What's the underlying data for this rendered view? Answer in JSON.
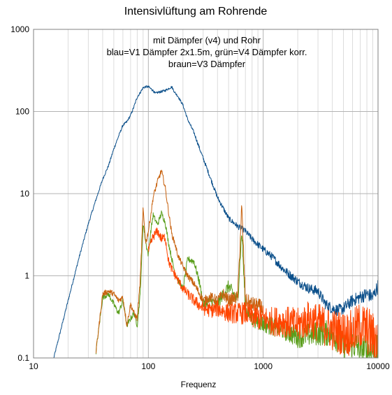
{
  "chart_data": {
    "type": "line",
    "title": "Intensivlüftung am Rohrende",
    "annotation": [
      "mit Dämpfer (v4) und Rohr",
      "blau=V1 Dämpfer 2x1.5m, grün=V4 Dämpfer korr.",
      "braun=V3 Dämpfer"
    ],
    "xlabel": "Frequenz",
    "ylabel": "",
    "x_scale": "log",
    "y_scale": "log",
    "xlim": [
      10,
      10000
    ],
    "ylim": [
      0.1,
      1000
    ],
    "x_ticks": [
      "10",
      "100",
      "1000",
      "10000"
    ],
    "y_ticks": [
      "0.1",
      "1",
      "10",
      "100",
      "1000"
    ],
    "grid": true,
    "legend": "none",
    "colors": {
      "blue": "#0b4f8a",
      "green": "#5a9e1c",
      "brown": "#c8620f",
      "orange": "#ff4500"
    },
    "series": [
      {
        "id": "blue",
        "x": [
          15,
          20,
          25,
          30,
          35,
          40,
          45,
          50,
          55,
          60,
          65,
          70,
          75,
          80,
          85,
          90,
          95,
          100,
          110,
          115,
          120,
          130,
          140,
          150,
          160,
          170,
          180,
          200,
          220,
          250,
          280,
          300,
          350,
          400,
          500,
          600,
          700,
          800,
          1000,
          1200,
          1500,
          2000,
          2500,
          3000,
          3500,
          4000,
          4500,
          5000,
          6000,
          7000,
          8000,
          9000,
          10000
        ],
        "y": [
          0.1,
          0.5,
          1.7,
          4.3,
          8.5,
          15,
          22,
          35,
          50,
          68,
          75,
          90,
          115,
          150,
          170,
          195,
          200,
          200,
          180,
          165,
          170,
          175,
          180,
          190,
          200,
          170,
          155,
          120,
          80,
          55,
          35,
          27,
          15,
          9,
          5,
          4,
          3.5,
          2.8,
          2.1,
          1.7,
          1.2,
          0.85,
          0.7,
          0.65,
          0.45,
          0.4,
          0.38,
          0.4,
          0.5,
          0.55,
          0.6,
          0.55,
          0.75
        ]
      },
      {
        "id": "green",
        "x": [
          35,
          40,
          45,
          50,
          55,
          60,
          65,
          70,
          75,
          80,
          85,
          90,
          95,
          100,
          105,
          110,
          120,
          130,
          140,
          150,
          160,
          170,
          180,
          200,
          220,
          250,
          280,
          300,
          350,
          400,
          450,
          500,
          600,
          650,
          700,
          800,
          1000,
          1500,
          2000,
          3000,
          4000,
          5000,
          6000,
          7000,
          8000,
          10000
        ],
        "y": [
          0.12,
          0.55,
          0.6,
          0.45,
          0.35,
          0.5,
          0.25,
          0.3,
          0.35,
          0.25,
          0.6,
          4.5,
          2.5,
          1.8,
          3.5,
          5.5,
          4.2,
          5.8,
          4.5,
          2.5,
          1.6,
          1.1,
          0.9,
          0.7,
          1.6,
          1.5,
          0.8,
          0.45,
          0.5,
          0.45,
          0.6,
          0.75,
          0.5,
          3.5,
          0.4,
          0.3,
          0.26,
          0.22,
          0.18,
          0.2,
          0.2,
          0.14,
          0.15,
          0.13,
          0.12,
          0.12
        ]
      },
      {
        "id": "brown",
        "x": [
          35,
          40,
          45,
          50,
          55,
          60,
          65,
          70,
          75,
          80,
          85,
          90,
          95,
          100,
          105,
          110,
          120,
          130,
          140,
          150,
          160,
          170,
          180,
          200,
          220,
          250,
          280,
          300,
          350,
          400,
          450,
          500,
          600,
          650,
          700,
          800,
          1000
        ],
        "y": [
          0.12,
          0.6,
          0.65,
          0.6,
          0.5,
          0.55,
          0.25,
          0.45,
          0.35,
          0.3,
          0.9,
          6.5,
          2.5,
          3.5,
          5.5,
          9.0,
          14,
          19,
          12,
          6.0,
          3.2,
          2.5,
          1.8,
          1.3,
          1.0,
          0.8,
          0.6,
          0.5,
          0.55,
          0.5,
          0.6,
          0.5,
          0.55,
          7.0,
          0.5,
          0.45,
          0.4
        ]
      },
      {
        "id": "orange",
        "x": [
          100,
          110,
          120,
          130,
          140,
          150,
          160,
          180,
          200,
          220,
          250,
          300,
          350,
          400,
          500,
          600,
          700,
          800,
          1000,
          1200,
          1500,
          2000,
          2500,
          3000,
          4000,
          5000,
          6000,
          7000,
          8000,
          9000,
          10000
        ],
        "y": [
          2.0,
          3.0,
          3.5,
          2.8,
          3.0,
          1.5,
          1.2,
          0.9,
          0.7,
          0.6,
          0.5,
          0.4,
          0.38,
          0.4,
          0.35,
          0.35,
          0.35,
          0.32,
          0.3,
          0.28,
          0.28,
          0.25,
          0.3,
          0.27,
          0.22,
          0.2,
          0.2,
          0.25,
          0.22,
          0.18,
          0.15
        ]
      }
    ]
  }
}
